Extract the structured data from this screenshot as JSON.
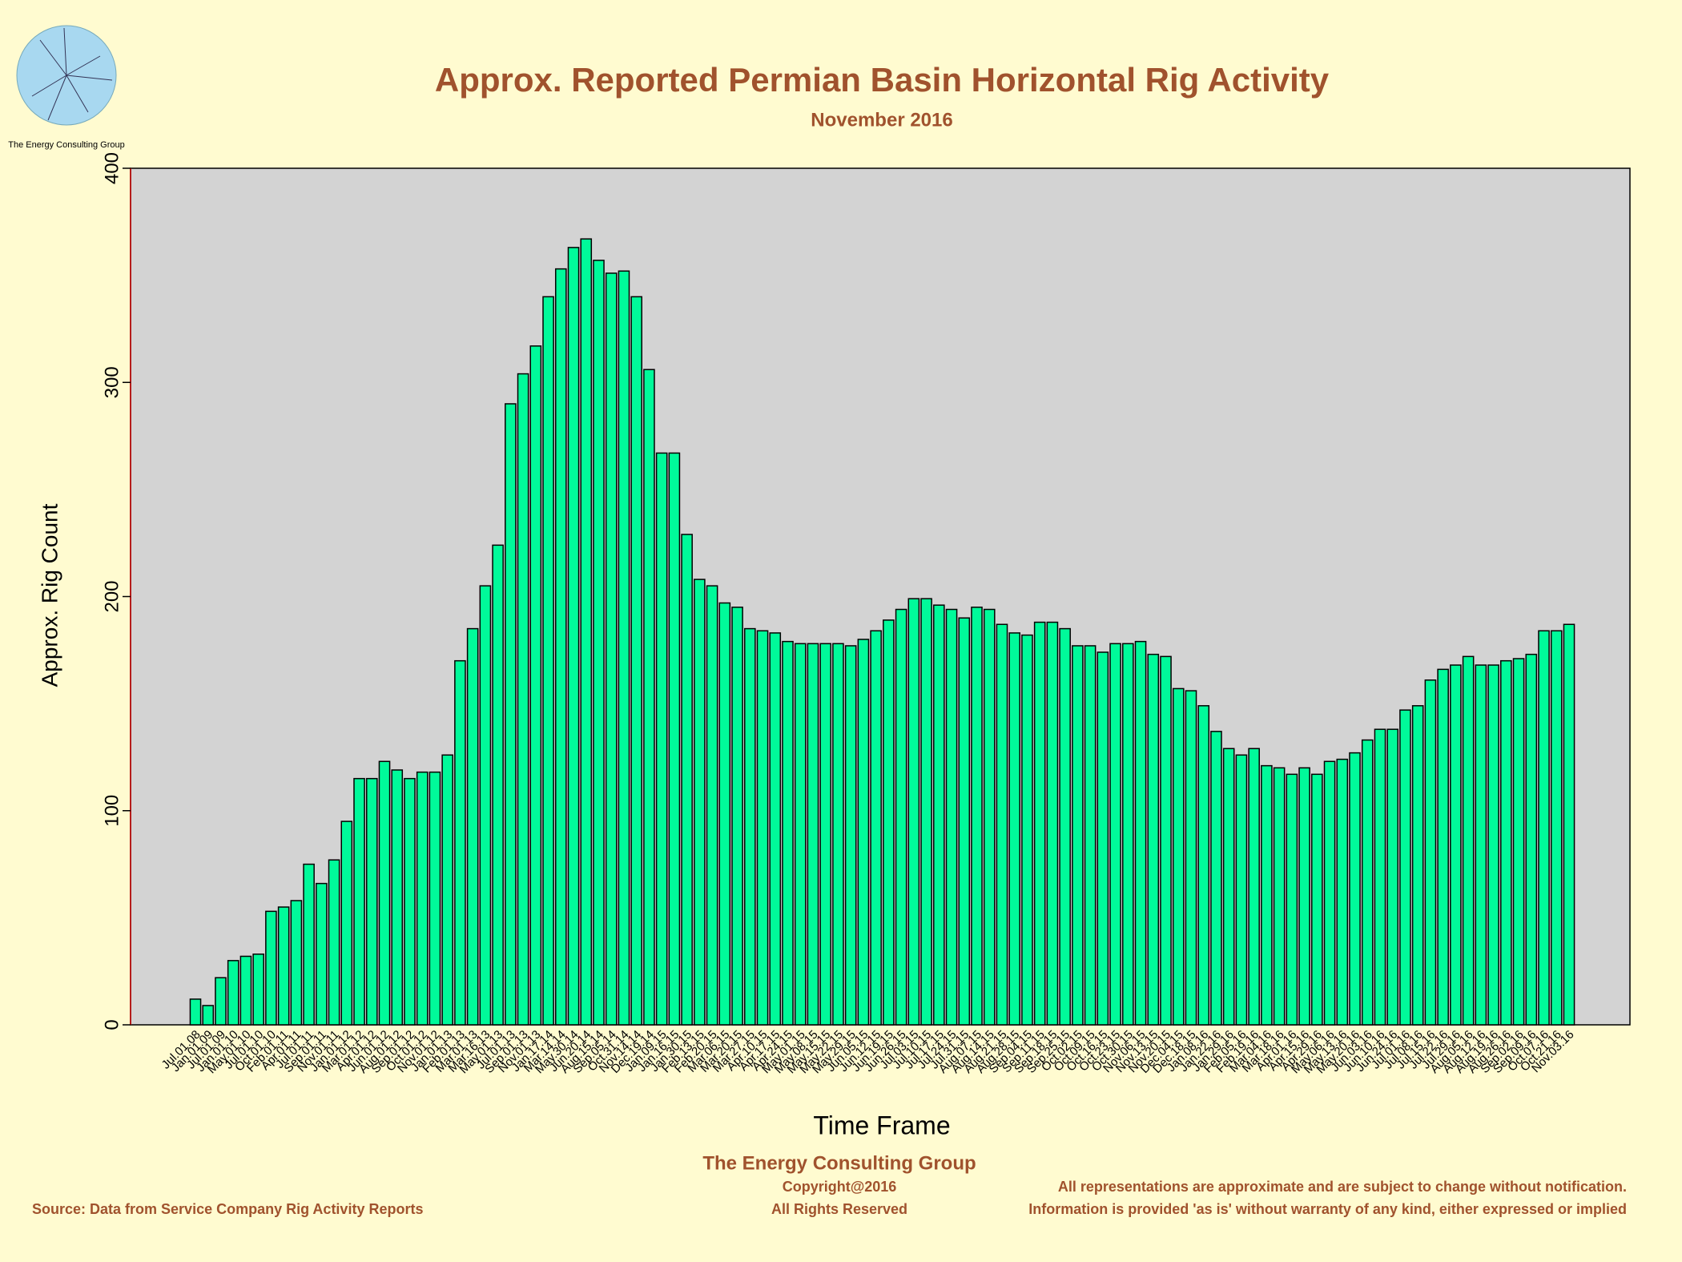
{
  "logo_text": "The Energy Consulting Group",
  "chart_data": {
    "type": "bar",
    "title": "Approx. Reported Permian Basin Horizontal Rig Activity",
    "subtitle": "November 2016",
    "x_label": "Time Frame",
    "y_label": "Approx. Rig Count",
    "color": "#00fa9a",
    "ylim": [
      0,
      400
    ],
    "yticks": [
      0,
      100,
      200,
      300,
      400
    ],
    "categories": [
      "Jul.01.08",
      "Jan.01.09",
      "Jul.01.09",
      "Jan.01.10",
      "May.01.10",
      "Jul.01.10",
      "Oct.01.10",
      "Feb.01.11",
      "Apr.01.11",
      "Jul.01.11",
      "Sep.01.11",
      "Nov.01.11",
      "Jan.01.12",
      "Mar.01.12",
      "Apr.01.12",
      "Jun.01.12",
      "Aug.01.12",
      "Sep.01.12",
      "Oct.01.12",
      "Nov.01.12",
      "Jan.01.13",
      "Feb.01.13",
      "Mar.01.13",
      "Mar.16.13",
      "May.01.13",
      "Jul.01.13",
      "Sep.01.13",
      "Nov.01.13",
      "Jan.17.14",
      "Mar.14.14",
      "May.30.14",
      "Jun.20.14",
      "Aug.15.14",
      "Sep.05.14",
      "Oct.31.14",
      "Nov.14.14",
      "Dec.19.14",
      "Jan.09.15",
      "Jan.16.15",
      "Jan.30.15",
      "Feb.13.15",
      "Feb.20.15",
      "Mar.06.15",
      "Mar.20.15",
      "Mar.27.15",
      "Apr.10.15",
      "Apr.17.15",
      "Apr.24.15",
      "May.01.15",
      "May.08.15",
      "May.15.15",
      "May.22.15",
      "May.29.15",
      "Jun.05.15",
      "Jun.12.15",
      "Jun.19.15",
      "Jun.26.15",
      "Jul.03.15",
      "Jul.10.15",
      "Jul.17.15",
      "Jul.24.15",
      "Jul.31.15",
      "Aug.07.15",
      "Aug.14.15",
      "Aug.21.15",
      "Aug.28.15",
      "Sep.04.15",
      "Sep.11.15",
      "Sep.18.15",
      "Sep.25.15",
      "Oct.02.15",
      "Oct.09.15",
      "Oct.16.15",
      "Oct.23.15",
      "Oct.30.15",
      "Nov.06.15",
      "Nov.13.15",
      "Nov.20.15",
      "Dec.04.15",
      "Dec.18.15",
      "Jan.08.16",
      "Jan.22.16",
      "Jan.29.16",
      "Feb.05.16",
      "Feb.19.16",
      "Mar.04.16",
      "Mar.18.16",
      "Apr.01.16",
      "Apr.15.16",
      "Apr.29.16",
      "May.06.16",
      "May.13.16",
      "May.20.16",
      "Jun.03.16",
      "Jun.10.16",
      "Jun.24.16",
      "Jul.01.16",
      "Jul.08.16",
      "Jul.15.16",
      "Jul.22.16",
      "Jul.29.16",
      "Aug.05.16",
      "Aug.12.16",
      "Aug.19.16",
      "Aug.26.16",
      "Sep.02.16",
      "Sep.09.16",
      "Oct.07.16",
      "Oct.21.16",
      "Nov.03.16"
    ],
    "values": [
      12,
      9,
      22,
      30,
      32,
      33,
      53,
      55,
      58,
      75,
      66,
      77,
      95,
      115,
      115,
      123,
      119,
      115,
      118,
      118,
      126,
      170,
      185,
      205,
      224,
      290,
      304,
      317,
      340,
      353,
      363,
      367,
      357,
      351,
      352,
      340,
      306,
      267,
      267,
      229,
      208,
      205,
      197,
      195,
      185,
      184,
      183,
      179,
      178,
      178,
      178,
      178,
      177,
      180,
      184,
      189,
      194,
      199,
      199,
      196,
      194,
      190,
      195,
      194,
      187,
      183,
      182,
      188,
      188,
      185,
      177,
      177,
      174,
      178,
      178,
      179,
      173,
      172,
      157,
      156,
      149,
      137,
      129,
      126,
      129,
      121,
      120,
      117,
      120,
      117,
      123,
      124,
      127,
      133,
      138,
      138,
      147,
      149,
      161,
      166,
      168,
      172,
      168,
      168,
      170,
      171,
      173,
      184,
      184,
      187
    ]
  },
  "footer": {
    "company": "The Energy Consulting Group",
    "copyright": "Copyright@2016",
    "rights": "All Rights Reserved",
    "source": "Source: Data from Service Company Rig Activity Reports",
    "disclaimer1": "All representations are approximate and are subject to change without notification.",
    "disclaimer2": "Information is provided 'as is' without warranty of any kind, either expressed or implied"
  }
}
